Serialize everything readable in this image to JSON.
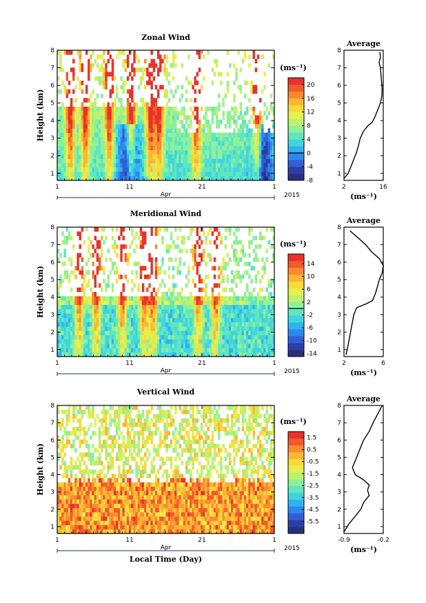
{
  "chart_data": [
    {
      "type": "heatmap",
      "title": "Zonal Wind",
      "ylabel": "Height (km)",
      "ylim": [
        0.6,
        8
      ],
      "y_ticks": [
        "1",
        "2",
        "3",
        "4",
        "5",
        "6",
        "7",
        "8"
      ],
      "x_ticks": [
        "1",
        "11",
        "21",
        "1"
      ],
      "xlim_days": [
        1,
        31
      ],
      "month_label": "Apr",
      "year_label": "2015",
      "colorbar": {
        "unit": "(ms⁻¹)",
        "min": -8,
        "max": 22,
        "zero_line": 0,
        "ticks": [
          "20",
          "16",
          "12",
          "8",
          "4",
          "0",
          "-4",
          "-8"
        ]
      },
      "profile": {
        "title": "Average",
        "xlim": [
          2,
          16
        ],
        "x_ticks": [
          "2",
          "16"
        ],
        "xlabel": "(ms⁻¹)",
        "height": [
          0.7,
          1.0,
          1.4,
          1.8,
          2.2,
          2.6,
          3.0,
          3.4,
          3.7,
          3.9,
          4.2,
          4.6,
          5.0,
          5.4,
          5.8,
          6.2,
          6.6,
          7.0,
          7.3,
          7.6,
          7.9
        ],
        "value": [
          2.0,
          3.5,
          4.5,
          5.5,
          6.5,
          7.2,
          7.8,
          9.0,
          10.5,
          12.0,
          13.0,
          14.0,
          15.0,
          15.5,
          15.6,
          15.4,
          15.2,
          15.0,
          14.5,
          15.0,
          14.8
        ]
      }
    },
    {
      "type": "heatmap",
      "title": "Meridional Wind",
      "ylabel": "Height (km)",
      "ylim": [
        0.6,
        8
      ],
      "y_ticks": [
        "1",
        "2",
        "3",
        "4",
        "5",
        "6",
        "7",
        "8"
      ],
      "x_ticks": [
        "1",
        "11",
        "21",
        "1"
      ],
      "xlim_days": [
        1,
        31
      ],
      "month_label": "Apr",
      "year_label": "2015",
      "colorbar": {
        "unit": "(ms⁻¹)",
        "min": -15,
        "max": 17,
        "zero_line": 0,
        "ticks": [
          "14",
          "10",
          "6",
          "2",
          "-2",
          "-6",
          "-10",
          "-14"
        ]
      },
      "profile": {
        "title": "Average",
        "xlim": [
          2,
          6
        ],
        "x_ticks": [
          "2",
          "6"
        ],
        "xlabel": "(ms⁻¹)",
        "height": [
          0.7,
          1.2,
          1.8,
          2.4,
          3.0,
          3.4,
          3.6,
          3.8,
          4.2,
          4.6,
          5.0,
          5.4,
          5.8,
          6.2,
          6.6,
          7.0,
          7.4,
          7.8
        ],
        "value": [
          2.2,
          2.4,
          2.6,
          2.8,
          3.0,
          3.3,
          4.2,
          4.9,
          5.2,
          5.4,
          5.6,
          5.9,
          6.0,
          5.6,
          4.8,
          4.2,
          3.4,
          2.6
        ]
      }
    },
    {
      "type": "heatmap",
      "title": "Vertical Wind",
      "ylabel": "Height (km)",
      "xlabel": "Local Time (Day)",
      "ylim": [
        0.6,
        8
      ],
      "y_ticks": [
        "1",
        "2",
        "3",
        "4",
        "5",
        "6",
        "7",
        "8"
      ],
      "x_ticks": [
        "1",
        "11",
        "21",
        "1"
      ],
      "xlim_days": [
        1,
        31
      ],
      "month_label": "Apr",
      "year_label": "2015",
      "colorbar": {
        "unit": "(ms⁻¹)",
        "min": -6.5,
        "max": 2.0,
        "ticks": [
          "1.5",
          "0.5",
          "-0.5",
          "-1.5",
          "-2.5",
          "-3.5",
          "-4.5",
          "-5.5"
        ]
      },
      "profile": {
        "title": "Average",
        "xlim": [
          -0.9,
          -0.2
        ],
        "x_ticks": [
          "-0.9",
          "-0.2"
        ],
        "xlabel": "(ms⁻¹)",
        "height": [
          0.7,
          1.2,
          1.6,
          2.0,
          2.4,
          2.8,
          3.1,
          3.4,
          3.7,
          4.0,
          4.4,
          4.8,
          5.2,
          5.6,
          6.0,
          6.5,
          7.0,
          7.5,
          8.0
        ],
        "value": [
          -0.9,
          -0.8,
          -0.7,
          -0.6,
          -0.55,
          -0.45,
          -0.48,
          -0.45,
          -0.55,
          -0.7,
          -0.75,
          -0.7,
          -0.65,
          -0.6,
          -0.55,
          -0.45,
          -0.38,
          -0.3,
          -0.22
        ]
      }
    }
  ]
}
